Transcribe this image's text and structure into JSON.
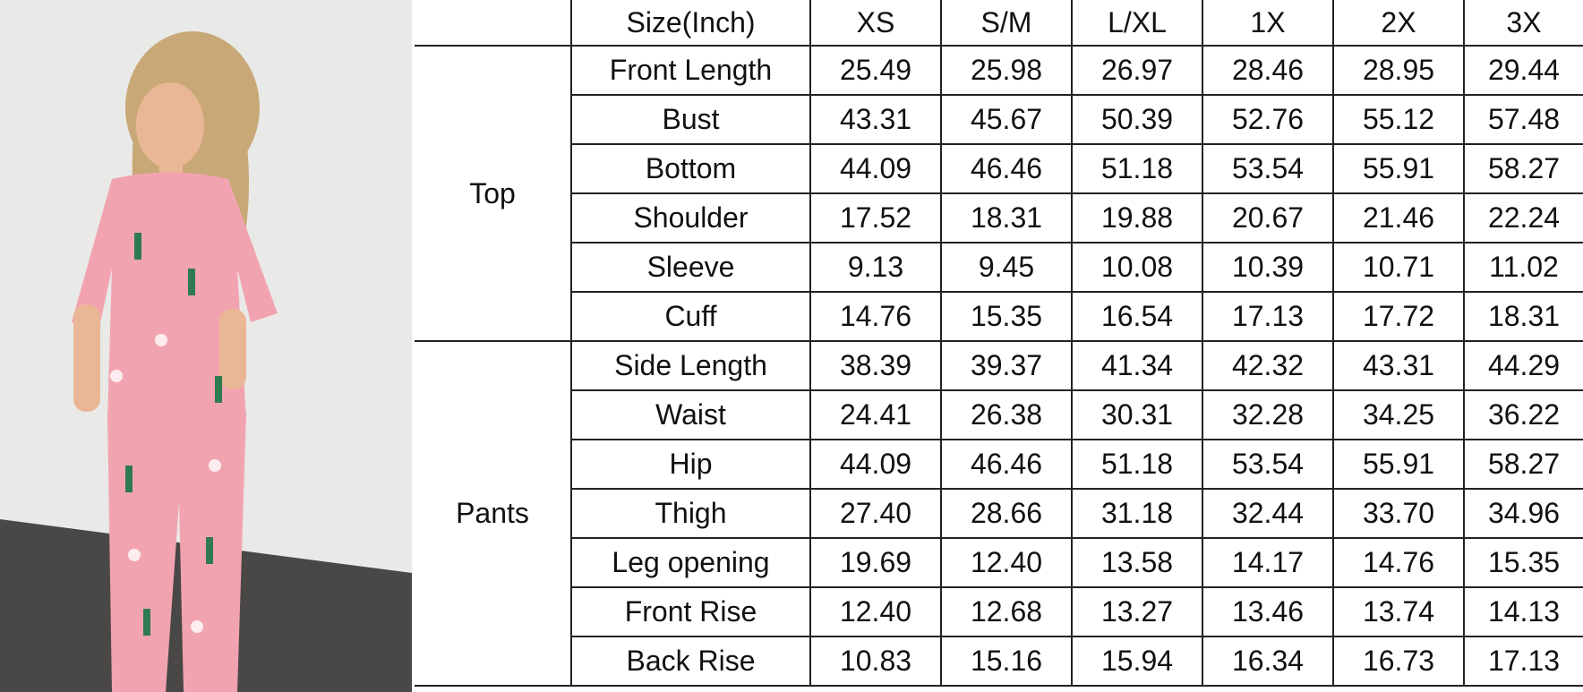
{
  "photo": {
    "alt_subject": "model-wearing-pink-western-print-pajama-set",
    "colors": {
      "wall": "#e9e9e7",
      "floor": "#4a4846",
      "garment": "#f2a3b0",
      "hair": "#c9a878"
    }
  },
  "table": {
    "header": [
      "Size(Inch)",
      "XS",
      "S/M",
      "L/XL",
      "1X",
      "2X",
      "3X"
    ],
    "groups": [
      {
        "label": "Top",
        "rows": [
          {
            "measure": "Front Length",
            "values": [
              "25.49",
              "25.98",
              "26.97",
              "28.46",
              "28.95",
              "29.44"
            ]
          },
          {
            "measure": "Bust",
            "values": [
              "43.31",
              "45.67",
              "50.39",
              "52.76",
              "55.12",
              "57.48"
            ]
          },
          {
            "measure": "Bottom",
            "values": [
              "44.09",
              "46.46",
              "51.18",
              "53.54",
              "55.91",
              "58.27"
            ]
          },
          {
            "measure": "Shoulder",
            "values": [
              "17.52",
              "18.31",
              "19.88",
              "20.67",
              "21.46",
              "22.24"
            ]
          },
          {
            "measure": "Sleeve",
            "values": [
              "9.13",
              "9.45",
              "10.08",
              "10.39",
              "10.71",
              "11.02"
            ]
          },
          {
            "measure": "Cuff",
            "values": [
              "14.76",
              "15.35",
              "16.54",
              "17.13",
              "17.72",
              "18.31"
            ]
          }
        ]
      },
      {
        "label": "Pants",
        "rows": [
          {
            "measure": "Side Length",
            "values": [
              "38.39",
              "39.37",
              "41.34",
              "42.32",
              "43.31",
              "44.29"
            ]
          },
          {
            "measure": "Waist",
            "values": [
              "24.41",
              "26.38",
              "30.31",
              "32.28",
              "34.25",
              "36.22"
            ]
          },
          {
            "measure": "Hip",
            "values": [
              "44.09",
              "46.46",
              "51.18",
              "53.54",
              "55.91",
              "58.27"
            ]
          },
          {
            "measure": "Thigh",
            "values": [
              "27.40",
              "28.66",
              "31.18",
              "32.44",
              "33.70",
              "34.96"
            ]
          },
          {
            "measure": "Leg opening",
            "values": [
              "19.69",
              "12.40",
              "13.58",
              "14.17",
              "14.76",
              "15.35"
            ]
          },
          {
            "measure": "Front Rise",
            "values": [
              "12.40",
              "12.68",
              "13.27",
              "13.46",
              "13.74",
              "14.13"
            ]
          },
          {
            "measure": "Back Rise",
            "values": [
              "10.83",
              "15.16",
              "15.94",
              "16.34",
              "16.73",
              "17.13"
            ]
          }
        ]
      }
    ]
  }
}
